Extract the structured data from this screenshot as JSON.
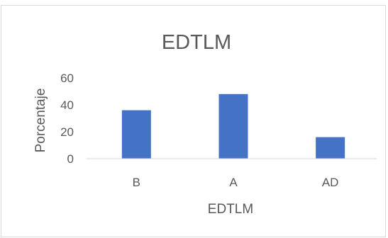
{
  "chart_data": {
    "type": "bar",
    "title": "EDTLM",
    "xlabel": "EDTLM",
    "ylabel": "Porcentaje",
    "categories": [
      "B",
      "A",
      "AD"
    ],
    "values": [
      36,
      48,
      16
    ],
    "ylim": [
      0,
      60
    ],
    "yticks": [
      0,
      20,
      40,
      60
    ],
    "grid": false,
    "legend": "none",
    "bar_color": "#4472c4",
    "text_color": "#595959",
    "axis_color": "#d9d9d9"
  }
}
